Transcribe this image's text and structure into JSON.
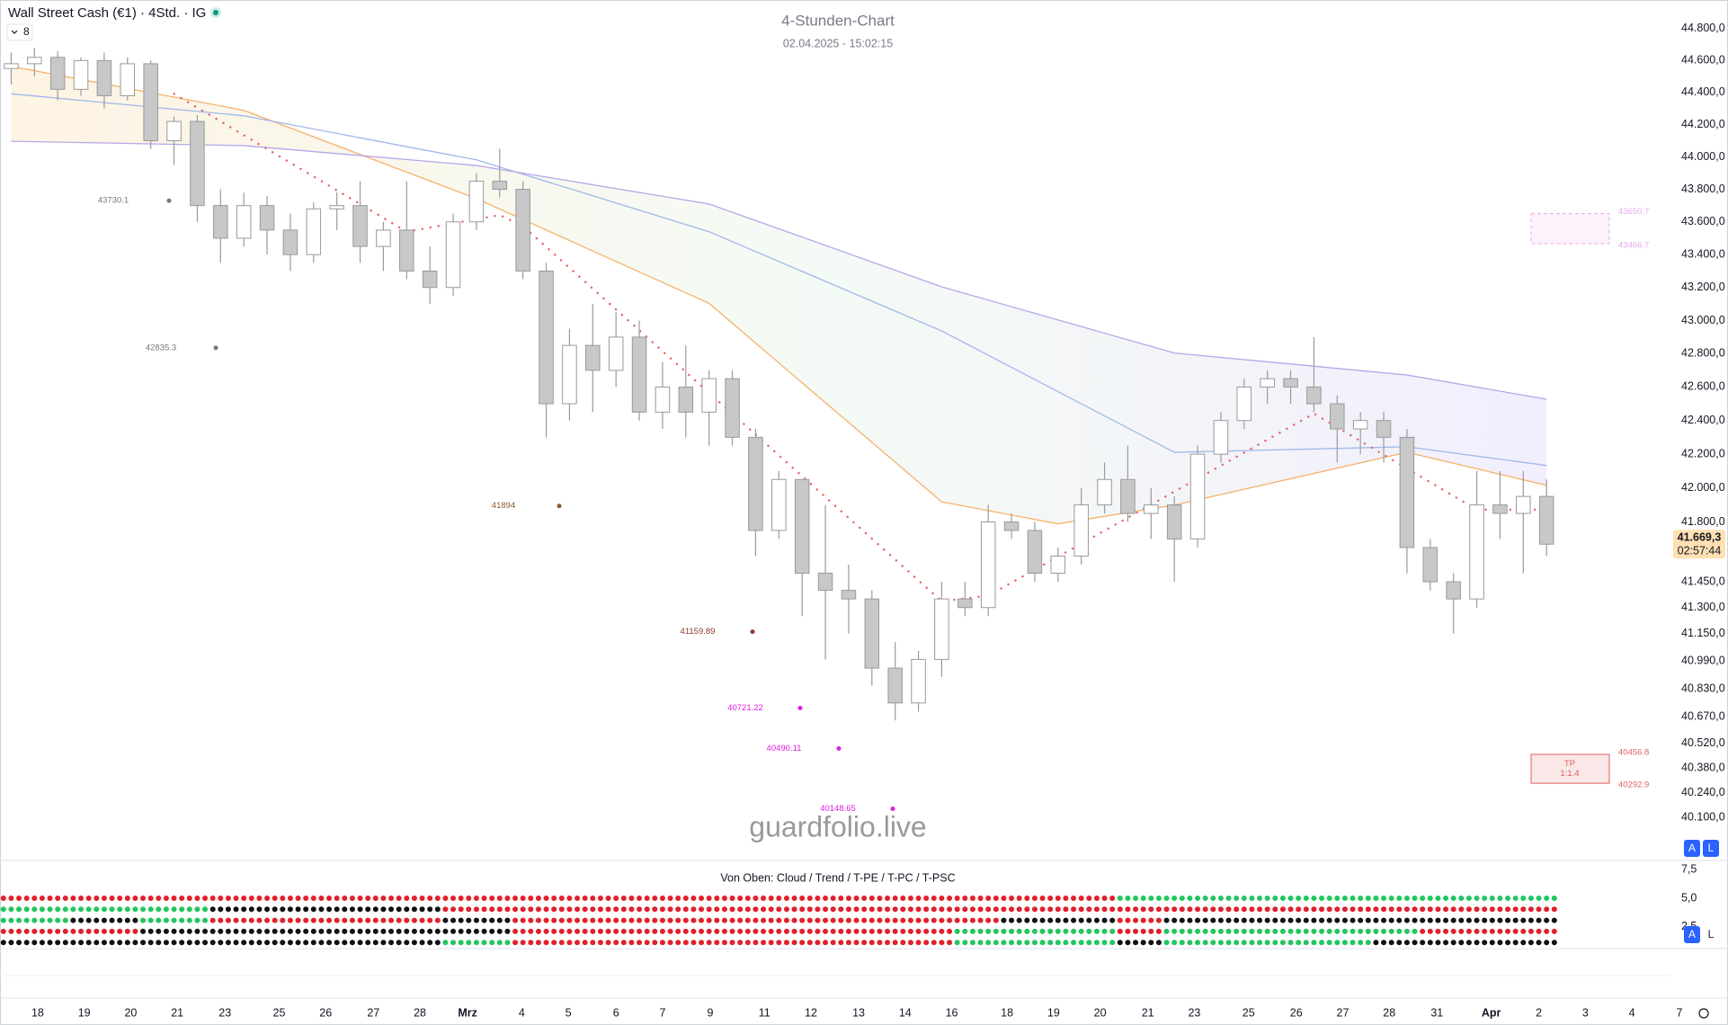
{
  "header": {
    "symbol": "Wall Street Cash (€1) · 4Std. · IG",
    "interval_count": "8",
    "buttons": [
      "A",
      "L"
    ]
  },
  "chart_data": {
    "type": "candlestick",
    "title": "4-Stunden-Chart",
    "subtitle": "02.04.2025 - 15:02:15",
    "watermark": "guardfolio.live",
    "log_scale": true,
    "grid": false,
    "ylim": [
      39858,
      44981
    ],
    "xlim": [
      -0.48,
      73.8
    ],
    "yticks": [
      {
        "value": 44800,
        "label": "44.800,0"
      },
      {
        "value": 44600,
        "label": "44.600,0"
      },
      {
        "value": 44400,
        "label": "44.400,0"
      },
      {
        "value": 44200,
        "label": "44.200,0"
      },
      {
        "value": 44000,
        "label": "44.000,0"
      },
      {
        "value": 43800,
        "label": "43.800,0"
      },
      {
        "value": 43600,
        "label": "43.600,0"
      },
      {
        "value": 43400,
        "label": "43.400,0"
      },
      {
        "value": 43200,
        "label": "43.200,0"
      },
      {
        "value": 43000,
        "label": "43.000,0"
      },
      {
        "value": 42800,
        "label": "42.800,0"
      },
      {
        "value": 42600,
        "label": "42.600,0"
      },
      {
        "value": 42400,
        "label": "42.400,0"
      },
      {
        "value": 42200,
        "label": "42.200,0"
      },
      {
        "value": 42000,
        "label": "42.000,0"
      },
      {
        "value": 41800,
        "label": "41.800,0"
      },
      {
        "value": 41450,
        "label": "41.450,0"
      },
      {
        "value": 41300,
        "label": "41.300,0"
      },
      {
        "value": 41150,
        "label": "41.150,0"
      },
      {
        "value": 40990,
        "label": "40.990,0"
      },
      {
        "value": 40830,
        "label": "40.830,0"
      },
      {
        "value": 40670,
        "label": "40.670,0"
      },
      {
        "value": 40520,
        "label": "40.520,0"
      },
      {
        "value": 40380,
        "label": "40.380,0"
      },
      {
        "value": 40240,
        "label": "40.240,0"
      },
      {
        "value": 40100,
        "label": "40.100,0"
      }
    ],
    "xticks": [
      {
        "value": 1.14,
        "label": "18"
      },
      {
        "value": 3.14,
        "label": "19"
      },
      {
        "value": 5.14,
        "label": "20"
      },
      {
        "value": 7.14,
        "label": "21"
      },
      {
        "value": 9.19,
        "label": "23"
      },
      {
        "value": 11.52,
        "label": "25"
      },
      {
        "value": 13.52,
        "label": "26"
      },
      {
        "value": 15.57,
        "label": "27"
      },
      {
        "value": 17.57,
        "label": "28"
      },
      {
        "value": 19.62,
        "label": "Mrz"
      },
      {
        "value": 21.95,
        "label": "4"
      },
      {
        "value": 23.95,
        "label": "5"
      },
      {
        "value": 26,
        "label": "6"
      },
      {
        "value": 28,
        "label": "7"
      },
      {
        "value": 30.05,
        "label": "9"
      },
      {
        "value": 32.38,
        "label": "11"
      },
      {
        "value": 34.38,
        "label": "12"
      },
      {
        "value": 36.43,
        "label": "13"
      },
      {
        "value": 38.43,
        "label": "14"
      },
      {
        "value": 40.43,
        "label": "16"
      },
      {
        "value": 42.81,
        "label": "18"
      },
      {
        "value": 44.81,
        "label": "19"
      },
      {
        "value": 46.81,
        "label": "20"
      },
      {
        "value": 48.86,
        "label": "21"
      },
      {
        "value": 50.86,
        "label": "23"
      },
      {
        "value": 53.19,
        "label": "25"
      },
      {
        "value": 55.24,
        "label": "26"
      },
      {
        "value": 57.24,
        "label": "27"
      },
      {
        "value": 59.24,
        "label": "28"
      },
      {
        "value": 61.29,
        "label": "31"
      },
      {
        "value": 63.62,
        "label": "Apr"
      },
      {
        "value": 65.67,
        "label": "2"
      },
      {
        "value": 67.67,
        "label": "3"
      },
      {
        "value": 69.67,
        "label": "4"
      },
      {
        "value": 71.71,
        "label": "7"
      }
    ],
    "up_color": "#ffffff",
    "down_color": "#c8c8c8",
    "wick_color": "#9a9a9a",
    "open": [
      44550,
      44580,
      44620,
      44420,
      44600,
      44380,
      44580,
      44100,
      44220,
      43700,
      43500,
      43700,
      43550,
      43400,
      43680,
      43700,
      43450,
      43550,
      43300,
      43200,
      43600,
      43850,
      43800,
      43300,
      42500,
      42850,
      42700,
      42900,
      42450,
      42600,
      42450,
      42650,
      42300,
      41750,
      42050,
      41500,
      41400,
      41350,
      40950,
      40750,
      41000,
      41350,
      41300,
      41800,
      41750,
      41500,
      41600,
      41900,
      42050,
      41850,
      41900,
      41700,
      42200,
      42400,
      42600,
      42650,
      42600,
      42500,
      42350,
      42400,
      42300,
      41650,
      41450,
      41350,
      41900,
      41850,
      41950
    ],
    "high": [
      44650,
      44680,
      44660,
      44620,
      44650,
      44620,
      44600,
      44250,
      44260,
      43800,
      43780,
      43760,
      43650,
      43720,
      43780,
      43850,
      43600,
      43850,
      43450,
      43650,
      43900,
      44050,
      43850,
      43350,
      42950,
      43100,
      43050,
      43000,
      42750,
      42850,
      42700,
      42700,
      42350,
      42100,
      42050,
      41900,
      41550,
      41400,
      41100,
      41050,
      41450,
      41450,
      41900,
      41850,
      41800,
      41650,
      42000,
      42150,
      42250,
      42000,
      41950,
      42250,
      42450,
      42650,
      42700,
      42700,
      42900,
      42550,
      42450,
      42450,
      42350,
      41700,
      41500,
      42100,
      42100,
      42100,
      42050
    ],
    "low": [
      44450,
      44500,
      44350,
      44380,
      44300,
      44350,
      44050,
      43950,
      43600,
      43350,
      43450,
      43400,
      43300,
      43350,
      43550,
      43350,
      43300,
      43250,
      43100,
      43150,
      43550,
      43750,
      43250,
      42300,
      42400,
      42450,
      42600,
      42400,
      42350,
      42300,
      42250,
      42250,
      41600,
      41700,
      41250,
      41000,
      41150,
      40850,
      40650,
      40700,
      40900,
      41250,
      41250,
      41700,
      41450,
      41450,
      41550,
      41850,
      41800,
      41700,
      41450,
      41650,
      42150,
      42350,
      42500,
      42500,
      42450,
      42150,
      42200,
      42150,
      41500,
      41400,
      41150,
      41300,
      41700,
      41500,
      41600
    ],
    "close": [
      44580,
      44620,
      44420,
      44600,
      44380,
      44580,
      44100,
      44220,
      43700,
      43500,
      43700,
      43550,
      43400,
      43680,
      43700,
      43450,
      43550,
      43300,
      43200,
      43600,
      43850,
      43800,
      43300,
      42500,
      42850,
      42700,
      42900,
      42450,
      42600,
      42450,
      42650,
      42300,
      41750,
      42050,
      41500,
      41400,
      41350,
      40950,
      40750,
      41000,
      41350,
      41300,
      41800,
      41750,
      41500,
      41600,
      41900,
      42050,
      41850,
      41900,
      41700,
      42200,
      42400,
      42600,
      42650,
      42600,
      42500,
      42350,
      42400,
      42300,
      41650,
      41450,
      41350,
      41900,
      41850,
      41950,
      41669.3
    ],
    "last_label": "41.669,3",
    "countdown": "02:57:44",
    "series": [
      {
        "color": "#f6b26b",
        "x": [
          0,
          10,
          20,
          30,
          40,
          45,
          50,
          60,
          66
        ],
        "values": [
          44564,
          44289,
          43743,
          43104,
          41918,
          41789,
          41899,
          42211,
          42016
        ]
      },
      {
        "color": "#9fb8ea",
        "x": [
          0,
          10,
          20,
          30,
          40,
          50,
          60,
          66
        ],
        "values": [
          44392,
          44255,
          43982,
          43540,
          42937,
          42211,
          42244,
          42133
        ]
      },
      {
        "color": "#b7a6ea",
        "x": [
          0,
          10,
          20,
          30,
          40,
          50,
          60,
          66
        ],
        "values": [
          44097,
          44070,
          43947,
          43710,
          43204,
          42804,
          42672,
          42527
        ]
      },
      {
        "color": "#e06666",
        "dotted": true,
        "x": [
          7,
          17,
          21,
          22,
          40,
          42,
          56,
          63,
          66
        ],
        "values": [
          44392,
          43540,
          43642,
          43574,
          41337,
          41369,
          42441,
          41872,
          41872
        ]
      }
    ],
    "levels": [
      {
        "value": 43730.1,
        "color": "#777777"
      },
      {
        "value": 42835.3,
        "color": "#777777"
      },
      {
        "value": 41894,
        "color": "#8b5a2b"
      },
      {
        "value": 41159.89,
        "color": "#8b3a2b"
      },
      {
        "value": 40721.22,
        "color": "#e020e0"
      },
      {
        "value": 40490.11,
        "color": "#e020e0"
      },
      {
        "value": 40148.65,
        "color": "#e020e0"
      }
    ],
    "zones": [
      {
        "top": 43650.7,
        "bottom": 43466.7,
        "color": "#e8a8e8"
      },
      {
        "top": 40456.8,
        "bottom": 40292.9,
        "color": "#e06060",
        "labels": [
          "TP",
          "1:1.4"
        ]
      }
    ]
  },
  "indicator": {
    "title": "Von Oben: Cloud / Trend / T-PE / T-PC / T-PSC",
    "ylim": [
      0.6,
      8.3
    ],
    "yticks": [
      {
        "value": 7.5,
        "label": "7,5"
      },
      {
        "value": 5,
        "label": "5,0"
      },
      {
        "value": 2.5,
        "label": "2,5"
      }
    ],
    "dot_colors": {
      "g": "#22c55e",
      "r": "#e0202a",
      "k": "#111111"
    },
    "rows": [
      "rrrrrrrrrrrrrrrrrrrrrrrrrrrrrrrrrrrrrrrrrrrrrrrrggggggggggggggggggg",
      "gggggggggkkkkkkkkkkrrrrrrrrrrrrrrrrrrrrrrrrrrrrrrrrrrrrrrrrrrrrrrrr",
      "gggkkkgggrrrrrrrrrrkkkrrrrrrrrrrrrrrrrrrrrrkkkkkrrkkkkkkkkkkkkkkkkk",
      "rrrrrrkkkkkkkkkkkkkkkkrrrrrrrrrrrrrrrrrrrgggggggrrgggggggggggrrrrrr",
      "kkkkkkkkkkkkkkkkkkkgggrrrrrrrrrrrrrrrrrrrgggggggkkgggggggggkkkkkkkk"
    ]
  }
}
